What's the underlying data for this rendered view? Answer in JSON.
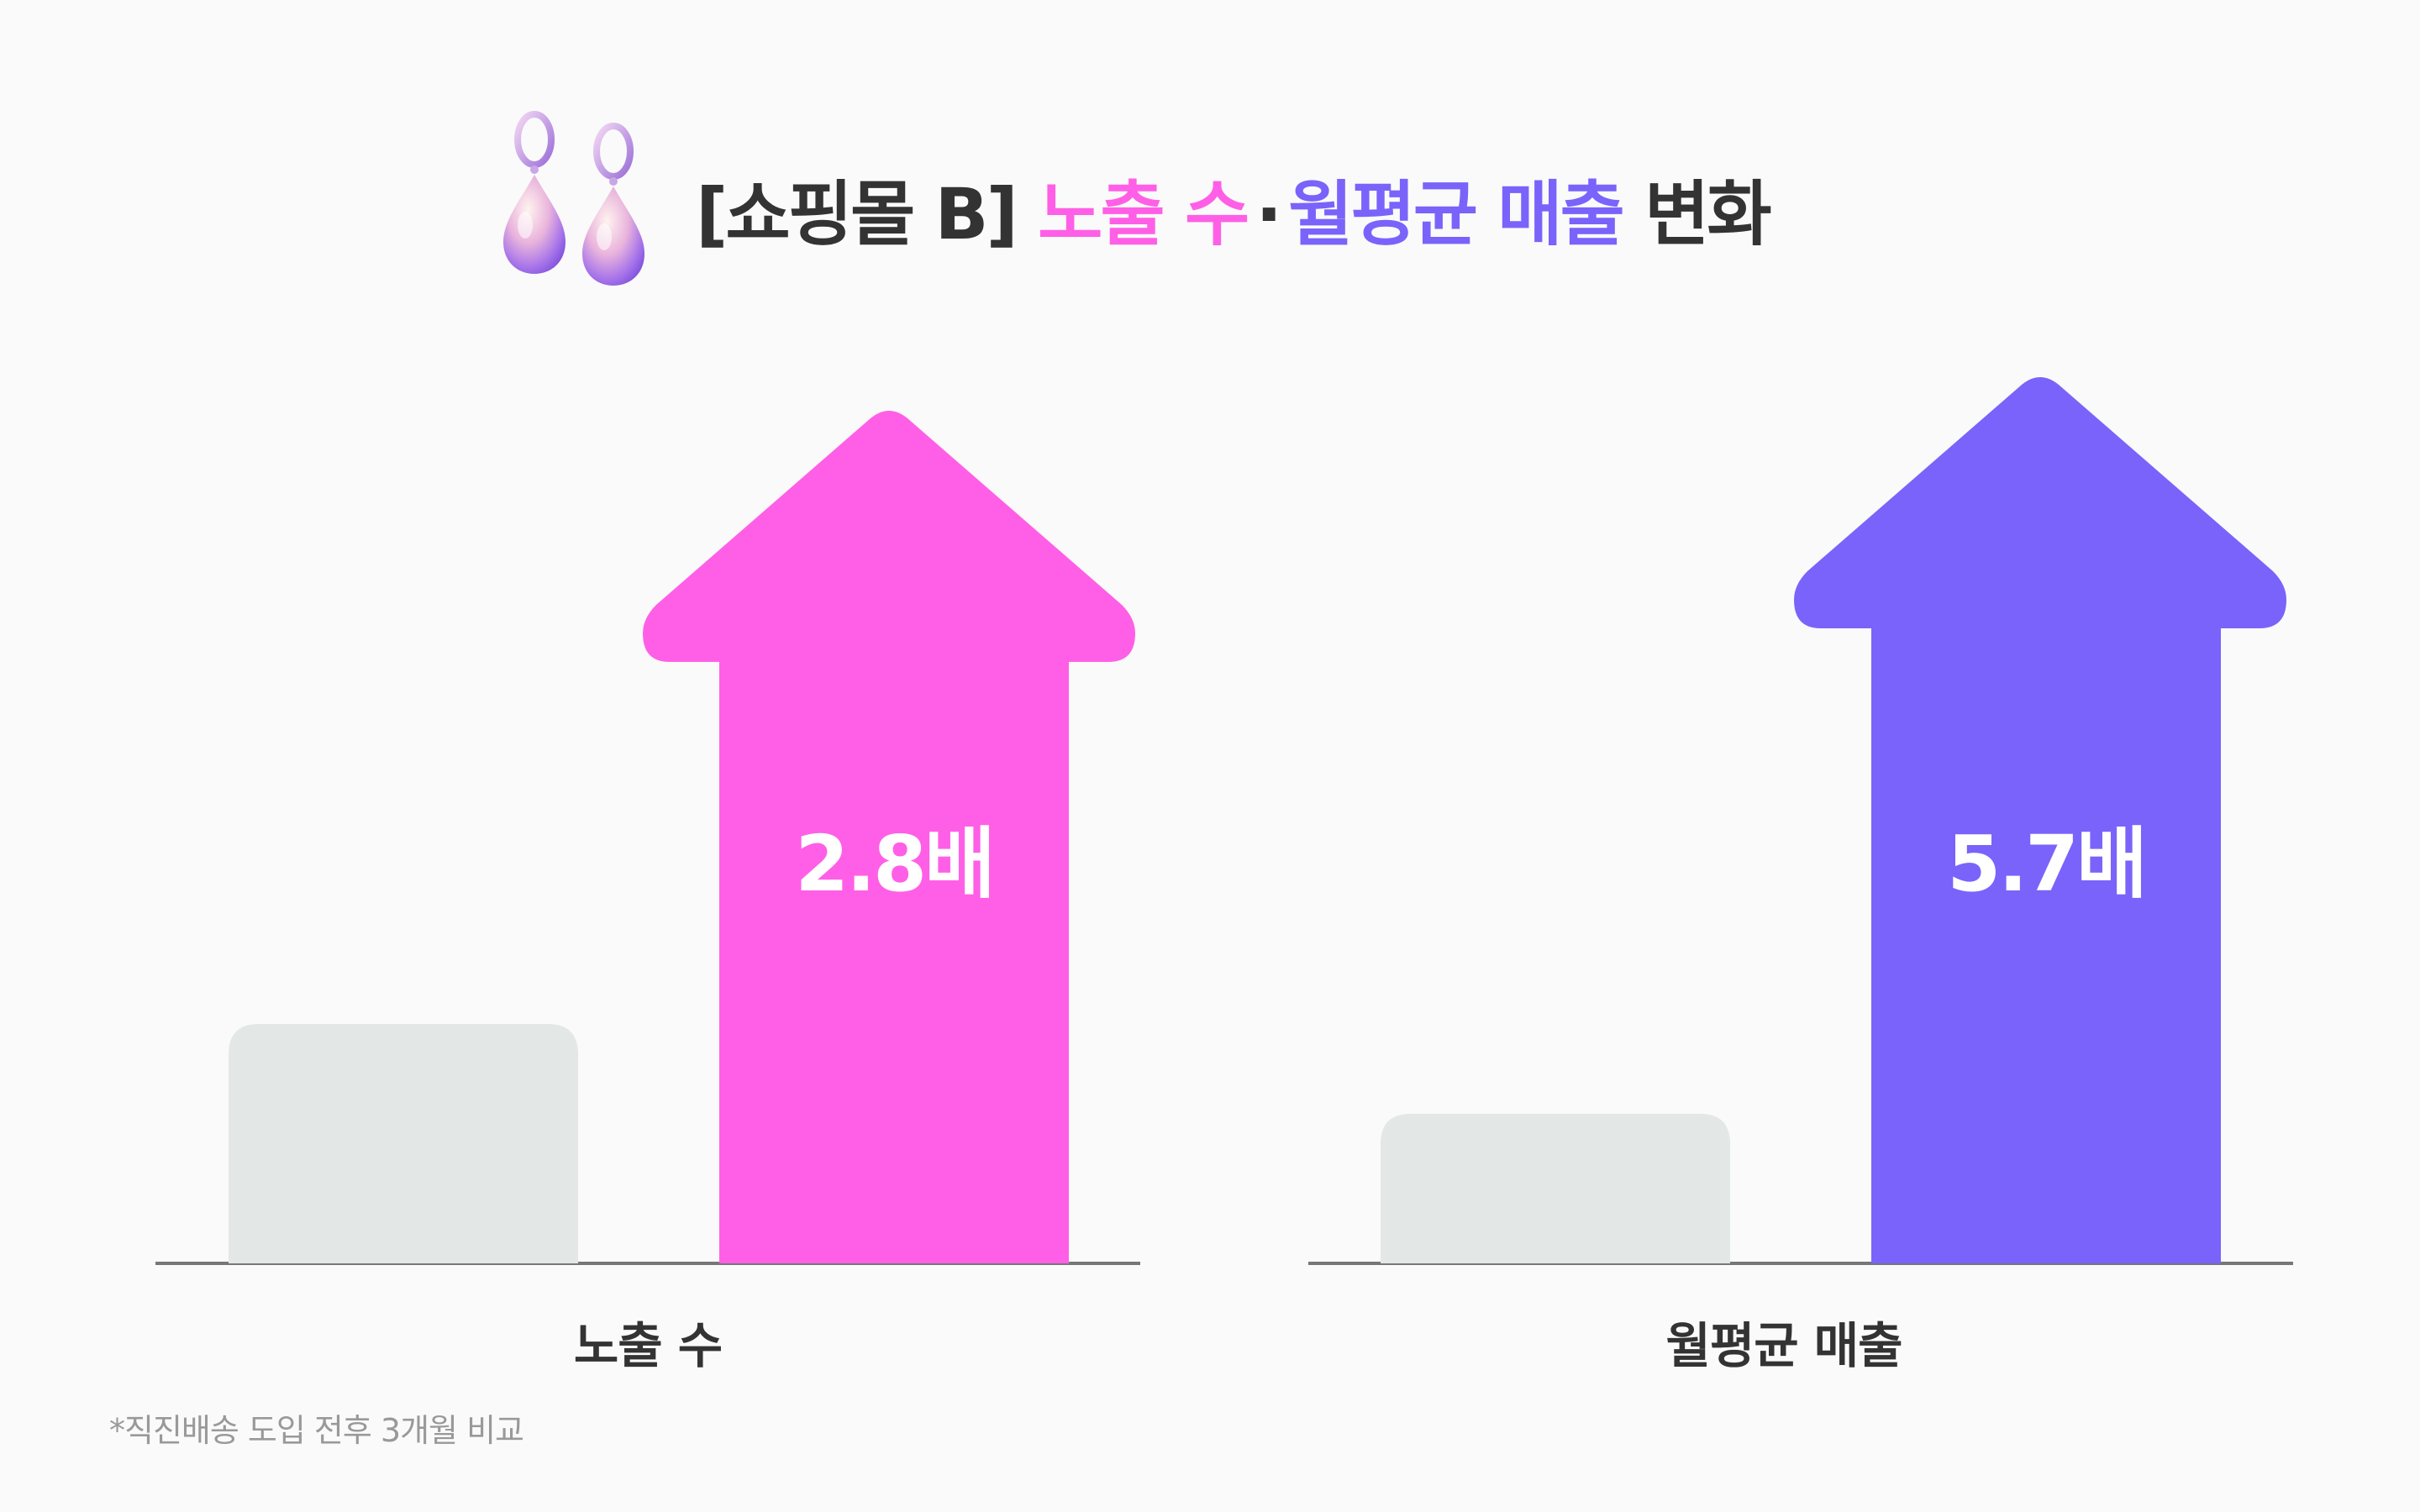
{
  "title": {
    "prefix": "[쇼핑몰 B]",
    "part1": "노출 수",
    "separator": "·",
    "part2": "월평균 매출",
    "suffix": "변화"
  },
  "icon": "earrings-icon",
  "colors": {
    "pink": "#ff5fe6",
    "purple": "#7a63fa",
    "before_bar": "#e3e8e6",
    "baseline": "#777777",
    "text": "#333333"
  },
  "chart_data": [
    {
      "type": "bar",
      "category_label": "노출 수",
      "before": 1,
      "after": 2.8,
      "after_label": "2.8배",
      "color": "#ff5fe6"
    },
    {
      "type": "bar",
      "category_label": "월평균 매출",
      "before": 1,
      "after": 5.7,
      "after_label": "5.7배",
      "color": "#7a63fa"
    }
  ],
  "footnote": "*직진배송 도입 전후 3개월 비교"
}
